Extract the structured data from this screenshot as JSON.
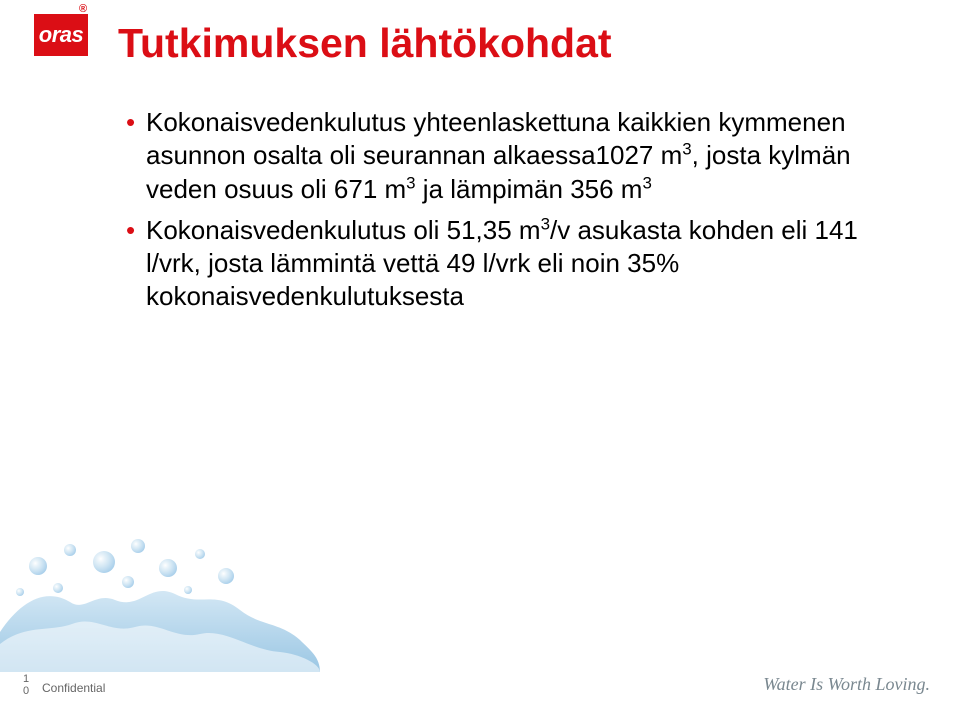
{
  "logo": {
    "text": "oras",
    "reg": "®",
    "bg_color": "#db0e15",
    "text_color": "#ffffff"
  },
  "title": {
    "text": "Tutkimuksen lähtökohdat",
    "color": "#db0e15",
    "fontsize": 41
  },
  "bullets": [
    {
      "html": "Kokonaisvedenkulutus yhteenlaskettuna kaikkien kymmenen asunnon osalta oli seurannan alkaessa1027 m<sup>3</sup>, josta kylmän veden osuus oli 671 m<sup>3</sup> ja lämpimän 356 m<sup>3</sup>"
    },
    {
      "html": "Kokonaisvedenkulutus oli 51,35 m<sup>3</sup>/v asukasta kohden eli 141 l/vrk, josta lämmintä vettä 49 l/vrk eli noin 35% kokonaisvedenkulutuksesta"
    }
  ],
  "bullet_color": "#db0e15",
  "body_fontsize": 26,
  "footer": {
    "slide_number": "1\n0",
    "confidential": "Confidential",
    "tagline": "Water Is Worth Loving.",
    "tagline_color": "#7a8890"
  },
  "water_art": {
    "splash_color": "#9ec9e8",
    "bubble_color": "#b8d8ef",
    "bubble_highlight": "#e8f3fa"
  }
}
